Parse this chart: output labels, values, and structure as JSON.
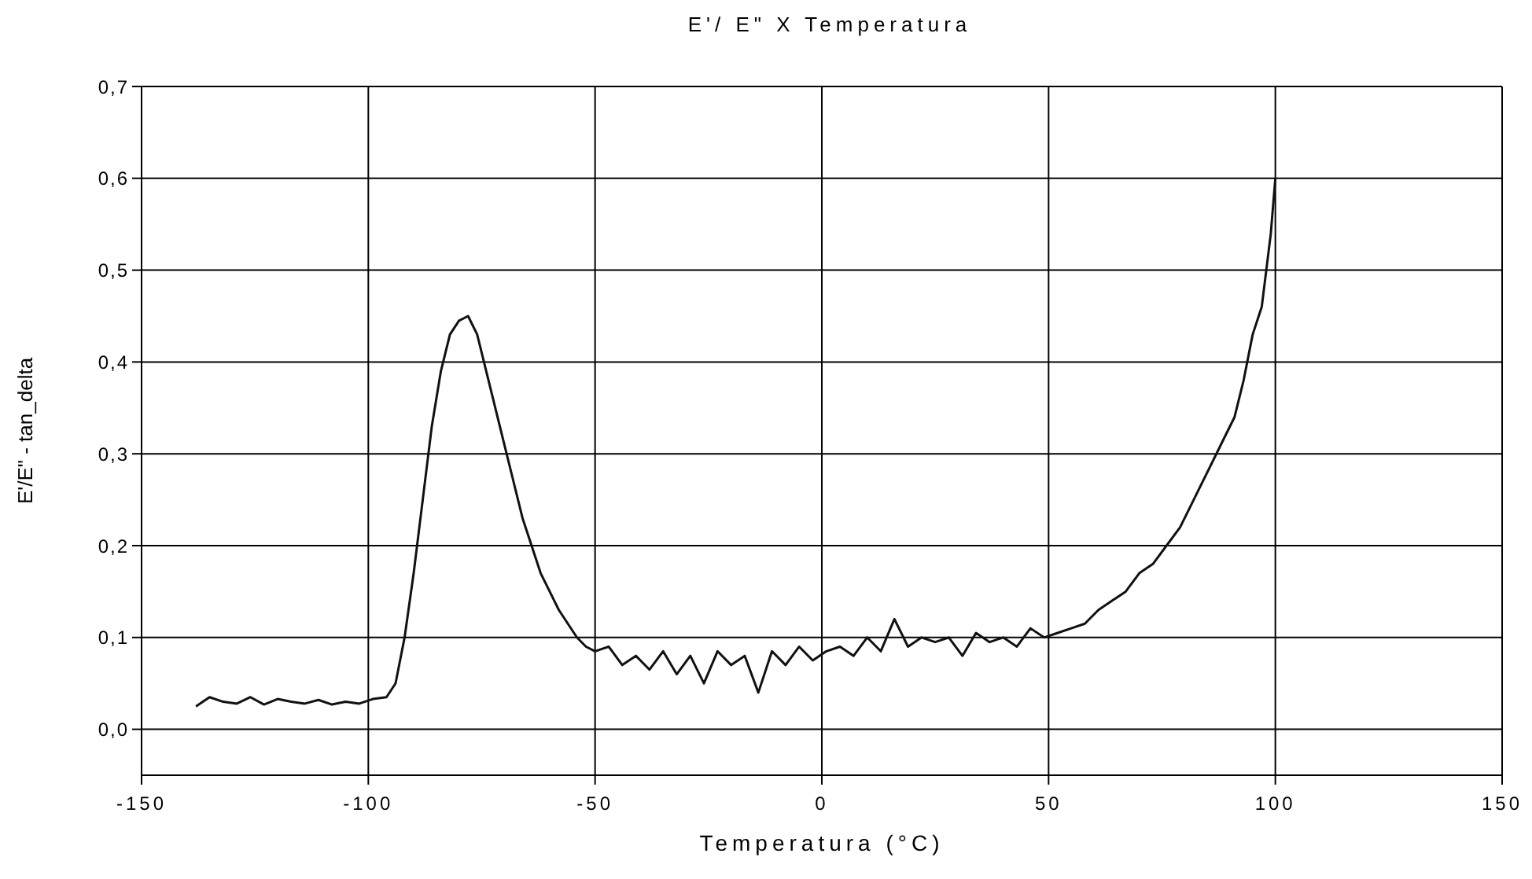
{
  "chart_data": {
    "type": "line",
    "title": "E'/ E\" X Temperatura",
    "xlabel": "Temperatura (°C)",
    "ylabel": "E'/E\" - tan_delta",
    "xlim": [
      -150,
      150
    ],
    "xticks": [
      -150,
      -100,
      -50,
      0,
      50,
      100,
      150
    ],
    "ylim": [
      -0.05,
      0.7
    ],
    "yticks": [
      {
        "value": 0,
        "label": "0,0"
      },
      {
        "value": 0.1,
        "label": "0,1"
      },
      {
        "value": 0.2,
        "label": "0,2"
      },
      {
        "value": 0.3,
        "label": "0,3"
      },
      {
        "value": 0.4,
        "label": "0,4"
      },
      {
        "value": 0.5,
        "label": "0,5"
      },
      {
        "value": 0.6,
        "label": "0,6"
      },
      {
        "value": 0.7,
        "label": "0,7"
      }
    ],
    "grid": true,
    "marker": "none",
    "line_style": "solid",
    "series": [
      {
        "color": "#111111",
        "x": [
          -138,
          -135,
          -132,
          -129,
          -126,
          -123,
          -120,
          -117,
          -114,
          -111,
          -108,
          -105,
          -102,
          -99,
          -96,
          -94,
          -92,
          -90,
          -88,
          -86,
          -84,
          -82,
          -80,
          -78,
          -76,
          -74,
          -72,
          -70,
          -68,
          -66,
          -64,
          -62,
          -60,
          -58,
          -56,
          -54,
          -52,
          -50,
          -47,
          -44,
          -41,
          -38,
          -35,
          -32,
          -29,
          -26,
          -23,
          -20,
          -17,
          -14,
          -11,
          -8,
          -5,
          -2,
          1,
          4,
          7,
          10,
          13,
          16,
          19,
          22,
          25,
          28,
          31,
          34,
          37,
          40,
          43,
          46,
          49,
          52,
          55,
          58,
          61,
          64,
          67,
          70,
          73,
          76,
          79,
          82,
          85,
          88,
          91,
          93,
          95,
          97,
          98,
          99,
          100
        ],
        "values": [
          0.025,
          0.035,
          0.03,
          0.028,
          0.035,
          0.027,
          0.033,
          0.03,
          0.028,
          0.032,
          0.027,
          0.03,
          0.028,
          0.033,
          0.035,
          0.05,
          0.1,
          0.17,
          0.25,
          0.33,
          0.39,
          0.43,
          0.445,
          0.45,
          0.43,
          0.39,
          0.35,
          0.31,
          0.27,
          0.23,
          0.2,
          0.17,
          0.15,
          0.13,
          0.115,
          0.1,
          0.09,
          0.085,
          0.09,
          0.07,
          0.08,
          0.065,
          0.085,
          0.06,
          0.08,
          0.05,
          0.085,
          0.07,
          0.08,
          0.04,
          0.085,
          0.07,
          0.09,
          0.075,
          0.085,
          0.09,
          0.08,
          0.1,
          0.085,
          0.12,
          0.09,
          0.1,
          0.095,
          0.1,
          0.08,
          0.105,
          0.095,
          0.1,
          0.09,
          0.11,
          0.1,
          0.105,
          0.11,
          0.115,
          0.13,
          0.14,
          0.15,
          0.17,
          0.18,
          0.2,
          0.22,
          0.25,
          0.28,
          0.31,
          0.34,
          0.38,
          0.43,
          0.46,
          0.5,
          0.54,
          0.6
        ]
      }
    ]
  }
}
